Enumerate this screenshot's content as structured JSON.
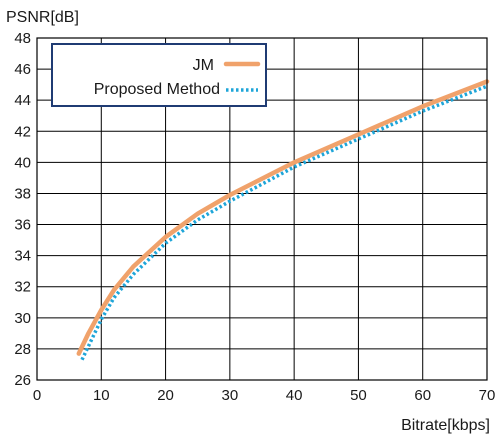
{
  "chart_data": {
    "type": "line",
    "title": "",
    "xlabel": "Bitrate[kbps]",
    "ylabel": "PSNR[dB]",
    "xlim": [
      0,
      70
    ],
    "ylim": [
      26,
      48
    ],
    "x_ticks": [
      0,
      10,
      20,
      30,
      40,
      50,
      60,
      70
    ],
    "y_ticks": [
      26,
      28,
      30,
      32,
      34,
      36,
      38,
      40,
      42,
      44,
      46,
      48
    ],
    "grid": true,
    "legend_position": "top-left",
    "series": [
      {
        "name": "JM",
        "color": "#f0a26b",
        "style": "solid",
        "points": [
          [
            6.5,
            27.7
          ],
          [
            8,
            29.0
          ],
          [
            10,
            30.5
          ],
          [
            12,
            31.8
          ],
          [
            15,
            33.3
          ],
          [
            20,
            35.2
          ],
          [
            25,
            36.7
          ],
          [
            30,
            37.9
          ],
          [
            40,
            40.0
          ],
          [
            50,
            41.8
          ],
          [
            60,
            43.6
          ],
          [
            70,
            45.2
          ]
        ]
      },
      {
        "name": "Proposed Method",
        "color": "#1ea5d8",
        "style": "dotted",
        "points": [
          [
            7,
            27.3
          ],
          [
            8.5,
            28.6
          ],
          [
            10,
            29.9
          ],
          [
            12,
            31.3
          ],
          [
            15,
            32.8
          ],
          [
            20,
            34.8
          ],
          [
            25,
            36.3
          ],
          [
            30,
            37.5
          ],
          [
            40,
            39.7
          ],
          [
            50,
            41.5
          ],
          [
            60,
            43.3
          ],
          [
            70,
            44.9
          ]
        ]
      }
    ]
  }
}
